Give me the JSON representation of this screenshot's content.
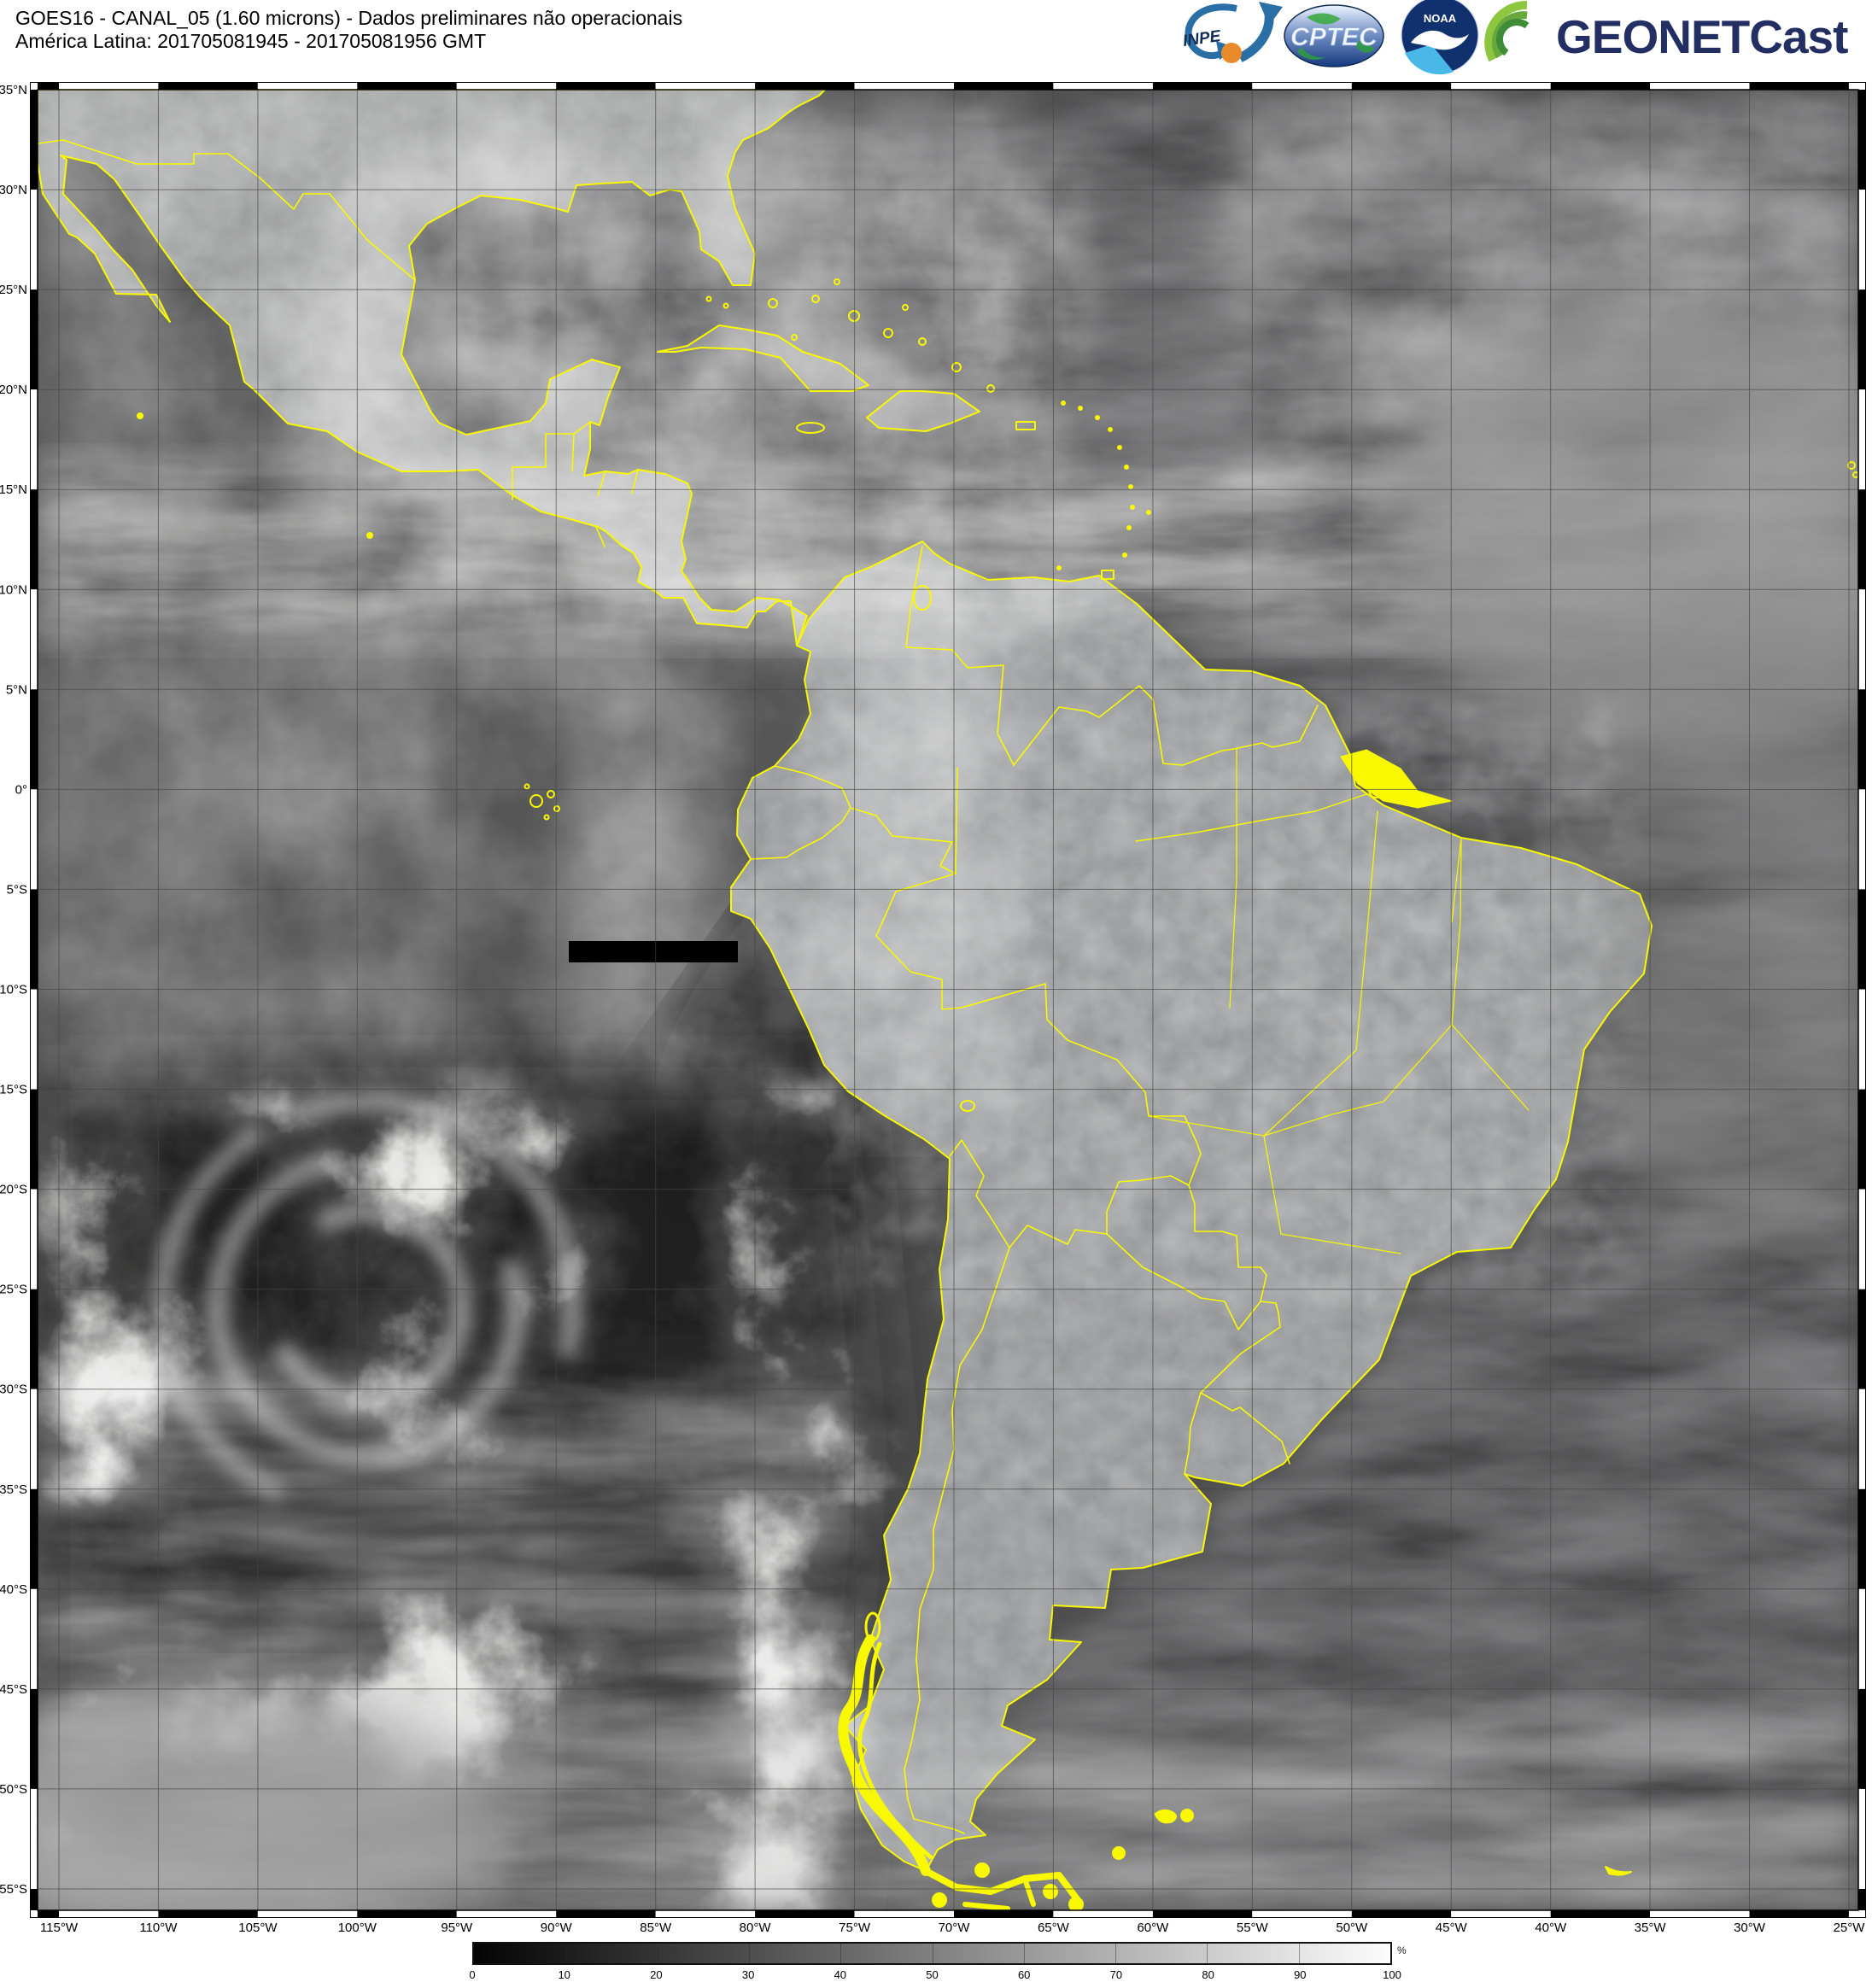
{
  "header": {
    "title_line1": "GOES16 - CANAL_05 (1.60 microns) - Dados preliminares não operacionais",
    "title_line2": "América Latina: 201705081945 - 201705081956 GMT",
    "logos": {
      "inpe_label": "INPE",
      "cptec_label": "CPTEC",
      "noaa_label": "NOAA",
      "geonetcast_label": "GEONETCast"
    }
  },
  "map": {
    "lat_labels": [
      "35°N",
      "30°N",
      "25°N",
      "20°N",
      "15°N",
      "10°N",
      "5°N",
      "0°",
      "5°S",
      "10°S",
      "15°S",
      "20°S",
      "25°S",
      "30°S",
      "35°S",
      "40°S",
      "45°S",
      "50°S",
      "55°S"
    ],
    "lon_labels": [
      "115°W",
      "110°W",
      "105°W",
      "100°W",
      "95°W",
      "90°W",
      "85°W",
      "80°W",
      "75°W",
      "70°W",
      "65°W",
      "60°W",
      "55°W",
      "50°W",
      "45°W",
      "40°W",
      "35°W",
      "30°W",
      "25°W"
    ],
    "coastline_color": "#f8f800",
    "grid_color": "#454545"
  },
  "colorbar": {
    "ticks": [
      "0",
      "10",
      "20",
      "30",
      "40",
      "50",
      "60",
      "70",
      "80",
      "90",
      "100"
    ],
    "unit": "%",
    "min_color": "#000000",
    "max_color": "#ffffff"
  }
}
